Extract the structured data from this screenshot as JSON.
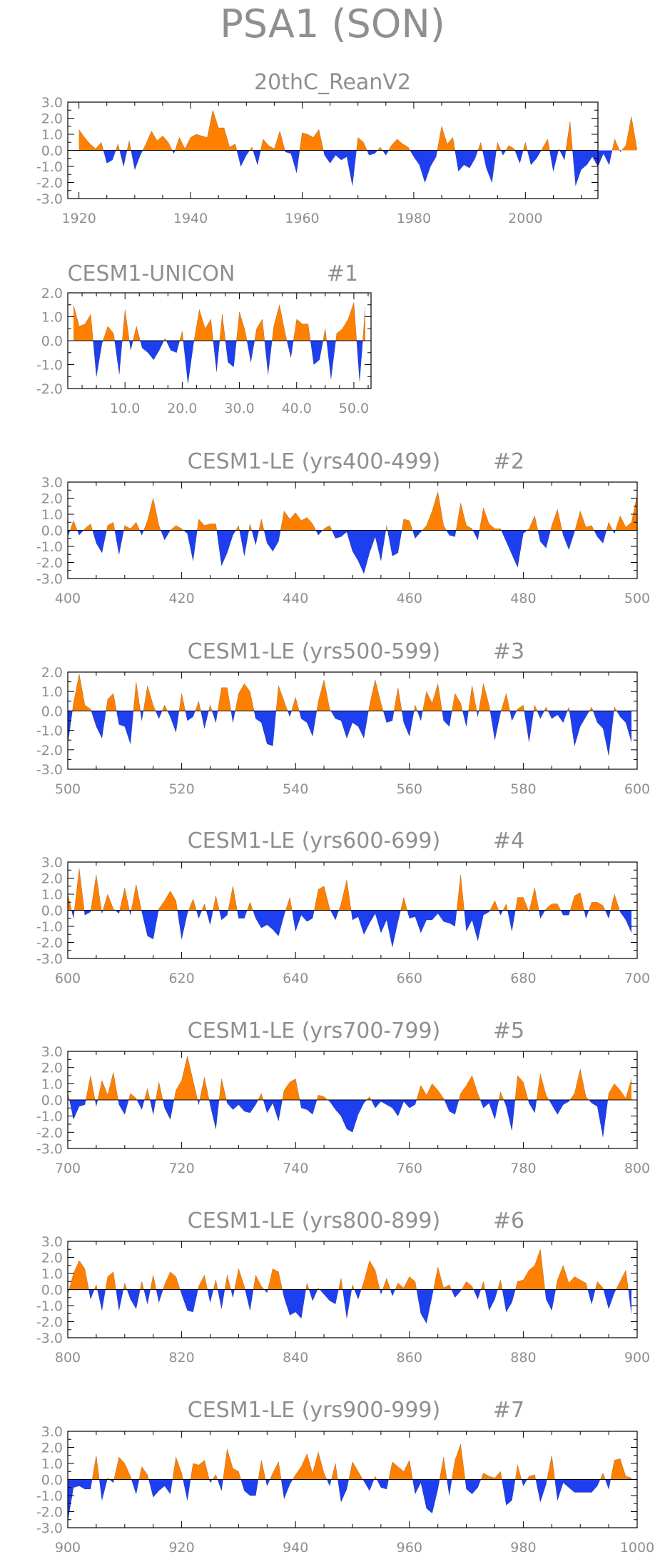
{
  "figure_title": "PSA1 (SON)",
  "colors": {
    "positive": "#ff8000",
    "negative": "#1e3ff0",
    "axis": "#000000",
    "text": "#8f8f8f"
  },
  "chart_data": [
    {
      "type": "area",
      "title": "20thC_ReanV2",
      "title_right": "",
      "ylim": [
        -3,
        3
      ],
      "yticks": [
        "3.0",
        "2.0",
        "1.0",
        "0.0",
        "-1.0",
        "-2.0",
        "-3.0"
      ],
      "xlim": [
        1918,
        2013
      ],
      "xticks": [
        1920,
        1940,
        1960,
        1980,
        2000
      ],
      "x_start": 1920,
      "values": [
        1.3,
        0.8,
        0.4,
        0.1,
        0.5,
        -0.8,
        -0.6,
        0.4,
        -1.0,
        0.6,
        -1.2,
        -0.3,
        0.4,
        1.2,
        0.6,
        0.9,
        0.5,
        -0.2,
        0.8,
        0.1,
        0.8,
        1.0,
        0.9,
        0.8,
        2.5,
        1.4,
        1.4,
        0.2,
        0.4,
        -1.0,
        -0.3,
        0.2,
        -0.9,
        0.7,
        0.3,
        0.1,
        1.2,
        -0.1,
        -0.2,
        -1.4,
        1.1,
        1.0,
        0.8,
        1.3,
        -0.3,
        -0.8,
        -0.3,
        -0.6,
        -0.4,
        -2.2,
        0.8,
        0.5,
        -0.3,
        -0.2,
        0.2,
        -0.3,
        0.3,
        0.7,
        0.4,
        0.2,
        -0.4,
        -0.9,
        -2.0,
        -1.0,
        -0.4,
        1.5,
        0.4,
        0.8,
        -1.3,
        -0.9,
        -1.1,
        -0.5,
        0.5,
        -1.1,
        -2.0,
        0.5,
        -0.3,
        0.3,
        0.1,
        -0.8,
        0.5,
        -0.9,
        -0.5,
        0.1,
        0.7,
        -1.3,
        0.1,
        -0.6,
        1.8,
        -2.2,
        -1.2,
        -0.9,
        -0.4,
        -1.0,
        -0.2,
        -0.9,
        0.7,
        -0.1,
        0.3,
        2.1,
        0.1
      ]
    },
    {
      "type": "area",
      "title": "CESM1-UNICON",
      "title_right": "#1",
      "ylim": [
        -2,
        2
      ],
      "yticks": [
        "2.0",
        "1.0",
        "0.0",
        "-1.0",
        "-2.0"
      ],
      "xlim": [
        0,
        53
      ],
      "xticks": [
        10.0,
        20.0,
        30.0,
        40.0,
        50.0
      ],
      "x_labels": [
        "10.0",
        "20.0",
        "30.0",
        "40.0",
        "50.0"
      ],
      "x_start": 1,
      "values": [
        1.5,
        0.6,
        0.7,
        1.1,
        -1.5,
        -0.1,
        0.6,
        0.3,
        -1.4,
        1.3,
        -0.4,
        0.6,
        -0.3,
        -0.5,
        -0.8,
        -0.4,
        0.1,
        -0.4,
        -0.5,
        0.4,
        -1.8,
        -0.1,
        1.3,
        0.5,
        0.9,
        -1.3,
        1.1,
        -0.9,
        -1.1,
        1.2,
        0.4,
        -0.9,
        0.5,
        0.9,
        -1.4,
        0.6,
        1.5,
        0.3,
        -0.7,
        0.9,
        0.7,
        0.7,
        -1.0,
        -0.8,
        0.5,
        -1.6,
        0.3,
        0.5,
        0.9,
        1.6,
        -1.7,
        1.4
      ]
    },
    {
      "type": "area",
      "title": "CESM1-LE (yrs400-499)",
      "title_right": "#2",
      "ylim": [
        -3,
        3
      ],
      "yticks": [
        "3.0",
        "2.0",
        "1.0",
        "0.0",
        "-1.0",
        "-2.0",
        "-3.0"
      ],
      "xlim": [
        400,
        500
      ],
      "xticks": [
        400,
        420,
        440,
        460,
        480,
        500
      ],
      "x_start": 400,
      "values": [
        -0.4,
        0.6,
        -0.3,
        0.1,
        0.4,
        -0.8,
        -1.4,
        0.3,
        0.5,
        -1.5,
        0.3,
        0.1,
        0.5,
        -0.3,
        0.6,
        2.0,
        0.3,
        -0.6,
        0.0,
        0.3,
        0.1,
        -0.2,
        -1.9,
        0.7,
        0.3,
        0.4,
        0.4,
        -2.2,
        -1.4,
        -0.3,
        0.3,
        -1.6,
        0.4,
        -0.9,
        0.7,
        -0.8,
        -1.3,
        -0.7,
        1.2,
        0.7,
        1.1,
        0.6,
        0.8,
        0.4,
        -0.3,
        0.1,
        0.3,
        -0.5,
        -0.4,
        -0.1,
        -1.3,
        -1.9,
        -2.7,
        -1.4,
        -0.4,
        -1.9,
        0.3,
        -1.6,
        -1.4,
        0.7,
        0.6,
        -0.5,
        -0.1,
        0.3,
        1.2,
        2.4,
        0.3,
        -0.3,
        -0.4,
        1.7,
        0.3,
        0.1,
        -0.6,
        1.4,
        0.4,
        0.1,
        0.1,
        -0.7,
        -1.5,
        -2.3,
        -0.2,
        0.1,
        0.9,
        -0.7,
        -1.1,
        0.3,
        1.3,
        -0.3,
        -1.2,
        -0.1,
        1.2,
        0.2,
        0.3,
        -0.4,
        -0.8,
        0.5,
        -0.2,
        0.9,
        0.2,
        0.5,
        2.2
      ]
    },
    {
      "type": "area",
      "title": "CESM1-LE (yrs500-599)",
      "title_right": "#3",
      "ylim": [
        -3,
        2
      ],
      "yticks": [
        "2.0",
        "1.0",
        "0.0",
        "-1.0",
        "-2.0",
        "-3.0"
      ],
      "xlim": [
        500,
        600
      ],
      "xticks": [
        500,
        520,
        540,
        560,
        580,
        600
      ],
      "x_start": 500,
      "values": [
        -1.7,
        0.4,
        1.9,
        0.3,
        0.1,
        -0.8,
        -1.4,
        0.6,
        0.9,
        -0.7,
        -0.8,
        -1.7,
        1.5,
        -0.5,
        1.3,
        0.3,
        -0.4,
        0.3,
        -0.3,
        -1.1,
        0.9,
        -0.5,
        -0.3,
        0.5,
        -0.9,
        0.3,
        -0.6,
        1.2,
        1.2,
        -0.6,
        0.9,
        1.4,
        1.0,
        -0.4,
        -0.6,
        -1.7,
        -1.8,
        1.3,
        0.5,
        -0.3,
        0.7,
        -0.4,
        -0.6,
        -1.3,
        0.5,
        1.6,
        0.1,
        -0.4,
        -0.5,
        -1.4,
        -0.6,
        -0.8,
        -1.4,
        0.3,
        1.6,
        0.4,
        -0.6,
        -0.5,
        1.2,
        -0.6,
        -1.3,
        0.3,
        -0.5,
        1.0,
        0.4,
        1.4,
        -0.5,
        -0.8,
        0.9,
        0.4,
        -0.8,
        1.3,
        -0.3,
        1.4,
        0.3,
        -1.5,
        -0.1,
        0.9,
        -0.5,
        0.1,
        0.3,
        -1.6,
        0.3,
        -0.4,
        0.2,
        -0.4,
        -0.2,
        -0.6,
        0.2,
        -1.8,
        -0.8,
        -0.3,
        0.2,
        -0.6,
        -0.9,
        -2.3,
        0.2,
        -0.3,
        -0.6,
        -1.6
      ]
    },
    {
      "type": "area",
      "title": "CESM1-LE (yrs600-699)",
      "title_right": "#4",
      "ylim": [
        -3,
        3
      ],
      "yticks": [
        "3.0",
        "2.0",
        "1.0",
        "0.0",
        "-1.0",
        "-2.0",
        "-3.0"
      ],
      "xlim": [
        600,
        700
      ],
      "xticks": [
        600,
        620,
        640,
        660,
        680,
        700
      ],
      "x_start": 600,
      "values": [
        1.0,
        -0.5,
        2.6,
        -0.3,
        -0.1,
        2.2,
        -0.2,
        1.0,
        0.1,
        -0.2,
        1.4,
        -0.3,
        1.6,
        -0.1,
        -1.6,
        -1.8,
        0.1,
        0.6,
        1.2,
        0.6,
        -1.8,
        -0.2,
        0.7,
        -0.5,
        0.4,
        -0.9,
        0.9,
        -0.6,
        -0.3,
        1.5,
        -0.5,
        -0.5,
        0.5,
        -0.5,
        -1.1,
        -0.9,
        -1.2,
        -1.6,
        -0.3,
        0.8,
        -1.3,
        -0.3,
        -0.7,
        -0.5,
        1.3,
        1.5,
        0.1,
        -0.6,
        0.4,
        1.9,
        -0.6,
        -0.4,
        -1.5,
        -0.8,
        -0.2,
        -1.4,
        -0.6,
        -2.3,
        -0.7,
        0.8,
        -0.5,
        -0.4,
        -1.4,
        -0.6,
        -0.6,
        -0.2,
        -0.7,
        -0.8,
        -1.0,
        2.2,
        -1.3,
        -0.6,
        -1.9,
        -0.3,
        -0.1,
        0.6,
        -0.3,
        0.4,
        -1.3,
        0.8,
        0.8,
        -0.1,
        1.4,
        -0.5,
        0.1,
        0.4,
        0.4,
        -0.3,
        -0.3,
        0.9,
        1.1,
        -0.5,
        0.5,
        0.5,
        0.3,
        -0.5,
        1.0,
        -0.1,
        -0.6,
        -1.4
      ]
    },
    {
      "type": "area",
      "title": "CESM1-LE (yrs700-799)",
      "title_right": "#5",
      "ylim": [
        -3,
        3
      ],
      "yticks": [
        "3.0",
        "2.0",
        "1.0",
        "0.0",
        "-1.0",
        "-2.0",
        "-3.0"
      ],
      "xlim": [
        700,
        800
      ],
      "xticks": [
        700,
        720,
        740,
        760,
        780,
        800
      ],
      "x_start": 700,
      "values": [
        0.5,
        -1.2,
        -0.4,
        -0.3,
        1.5,
        -0.4,
        1.2,
        0.3,
        1.7,
        -0.3,
        -0.9,
        0.4,
        0.1,
        -0.6,
        0.7,
        -0.9,
        1.1,
        -0.5,
        -1.2,
        0.6,
        1.2,
        2.7,
        1.2,
        -0.3,
        1.4,
        -0.3,
        -1.8,
        1.3,
        -0.2,
        -0.6,
        -0.3,
        -0.7,
        -0.8,
        -0.3,
        0.4,
        -0.8,
        -0.2,
        -1.3,
        0.6,
        1.1,
        1.3,
        -0.5,
        -0.6,
        -0.9,
        0.3,
        0.2,
        -0.1,
        -0.6,
        -1.0,
        -1.8,
        -2.0,
        -0.9,
        -0.2,
        0.2,
        -0.5,
        -0.1,
        -0.3,
        -0.5,
        -1.0,
        -0.1,
        -0.5,
        -0.3,
        0.9,
        0.3,
        1.0,
        0.6,
        0.1,
        -0.7,
        -0.9,
        0.4,
        0.9,
        1.5,
        0.4,
        -0.5,
        -0.2,
        -1.2,
        0.5,
        -0.4,
        -1.9,
        1.5,
        1.1,
        -0.2,
        -0.8,
        1.6,
        0.3,
        -0.3,
        -0.9,
        -0.3,
        -0.1,
        0.4,
        1.9,
        0.2,
        -0.2,
        -0.4,
        -2.3,
        0.4,
        1.0,
        0.6,
        0.1,
        1.3
      ]
    },
    {
      "type": "area",
      "title": "CESM1-LE (yrs800-899)",
      "title_right": "#6",
      "ylim": [
        -3,
        3
      ],
      "yticks": [
        "3.0",
        "2.0",
        "1.0",
        "0.0",
        "-1.0",
        "-2.0",
        "-3.0"
      ],
      "xlim": [
        800,
        900
      ],
      "xticks": [
        800,
        820,
        840,
        860,
        880,
        900
      ],
      "x_start": 800,
      "values": [
        -0.3,
        1.0,
        1.8,
        1.3,
        -0.6,
        0.3,
        -1.3,
        0.8,
        1.1,
        -1.3,
        0.4,
        -0.6,
        -1.2,
        0.5,
        -0.9,
        0.9,
        -0.8,
        0.3,
        1.1,
        0.8,
        -0.3,
        -1.3,
        -1.4,
        0.2,
        0.9,
        -0.8,
        0.6,
        -1.2,
        0.9,
        -0.5,
        1.3,
        0.2,
        -1.3,
        0.9,
        0.2,
        -0.2,
        1.3,
        1.1,
        -0.5,
        -1.6,
        -1.4,
        -1.8,
        0.4,
        -0.7,
        0.1,
        -0.3,
        -0.7,
        -0.9,
        0.7,
        -1.8,
        0.3,
        -0.6,
        0.5,
        1.8,
        1.2,
        -0.3,
        0.7,
        -0.4,
        0.4,
        0.1,
        0.8,
        0.5,
        -1.5,
        -2.1,
        -0.4,
        1.4,
        0.1,
        0.3,
        -0.5,
        -0.1,
        0.5,
        0.2,
        -0.6,
        0.5,
        -1.3,
        -0.6,
        0.6,
        -1.4,
        -0.8,
        0.5,
        0.6,
        1.2,
        1.5,
        2.5,
        -0.6,
        -1.3,
        0.6,
        1.5,
        0.4,
        0.8,
        0.6,
        0.4,
        -0.9,
        0.5,
        0.1,
        -1.2,
        -0.2,
        0.5,
        1.2,
        -1.5
      ]
    },
    {
      "type": "area",
      "title": "CESM1-LE (yrs900-999)",
      "title_right": "#7",
      "ylim": [
        -3,
        3
      ],
      "yticks": [
        "3.0",
        "2.0",
        "1.0",
        "0.0",
        "-1.0",
        "-2.0",
        "-3.0"
      ],
      "xlim": [
        900,
        1000
      ],
      "xticks": [
        900,
        920,
        940,
        960,
        980,
        1000
      ],
      "x_start": 900,
      "values": [
        -2.6,
        -0.5,
        -0.4,
        -0.6,
        -0.6,
        1.5,
        -1.3,
        0.1,
        -0.2,
        1.4,
        1.0,
        0.2,
        -0.9,
        0.8,
        0.3,
        -1.1,
        -0.7,
        -0.4,
        -0.9,
        1.4,
        0.4,
        -1.3,
        1.0,
        0.9,
        1.2,
        -0.2,
        0.3,
        -0.7,
        1.9,
        0.7,
        0.5,
        -0.7,
        -1.0,
        -1.0,
        1.2,
        -0.4,
        0.4,
        1.1,
        -1.2,
        -0.3,
        0.3,
        0.8,
        1.6,
        0.4,
        1.7,
        0.4,
        -0.4,
        1.0,
        -1.4,
        -0.6,
        1.1,
        0.5,
        -0.1,
        -0.7,
        0.2,
        -0.5,
        -0.6,
        1.1,
        0.8,
        0.5,
        1.2,
        -0.9,
        -0.2,
        -1.8,
        -2.1,
        -0.6,
        1.4,
        -1.0,
        1.2,
        2.2,
        -0.6,
        -0.9,
        -0.5,
        0.4,
        0.2,
        0.1,
        0.5,
        -1.6,
        -1.3,
        0.9,
        -0.4,
        0.2,
        0.3,
        -1.4,
        -0.3,
        1.5,
        -1.3,
        -0.2,
        -0.5,
        -0.8,
        -0.8,
        -0.8,
        -0.8,
        -0.4,
        0.4,
        -0.6,
        1.2,
        1.3,
        0.2,
        0.1
      ]
    }
  ]
}
